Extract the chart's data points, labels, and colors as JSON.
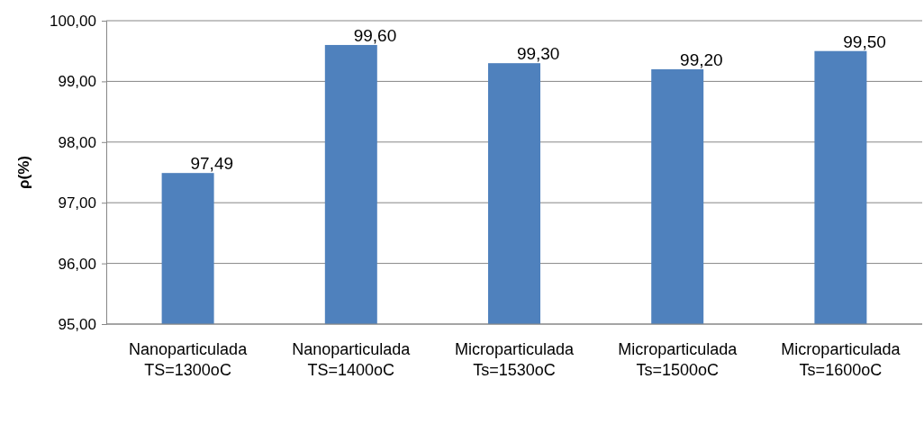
{
  "chart_data": {
    "type": "bar",
    "ylabel": "ρ(%)",
    "categories": [
      "Nanoparticulada TS=1300oC",
      "Nanoparticulada TS=1400oC",
      "Microparticulada Ts=1530oC",
      "Microparticulada Ts=1500oC",
      "Microparticulada Ts=1600oC"
    ],
    "values": [
      97.49,
      99.6,
      99.3,
      99.2,
      99.5
    ],
    "value_labels": [
      "97,49",
      "99,60",
      "99,30",
      "99,20",
      "99,50"
    ],
    "color": "#4f81bd",
    "ylim": [
      95,
      100
    ],
    "yticks": [
      {
        "value": 95,
        "label": "95,00"
      },
      {
        "value": 96,
        "label": "96,00"
      },
      {
        "value": 97,
        "label": "97,00"
      },
      {
        "value": 98,
        "label": "98,00"
      },
      {
        "value": 99,
        "label": "99,00"
      },
      {
        "value": 100,
        "label": "100,00"
      }
    ],
    "grid": "y"
  }
}
